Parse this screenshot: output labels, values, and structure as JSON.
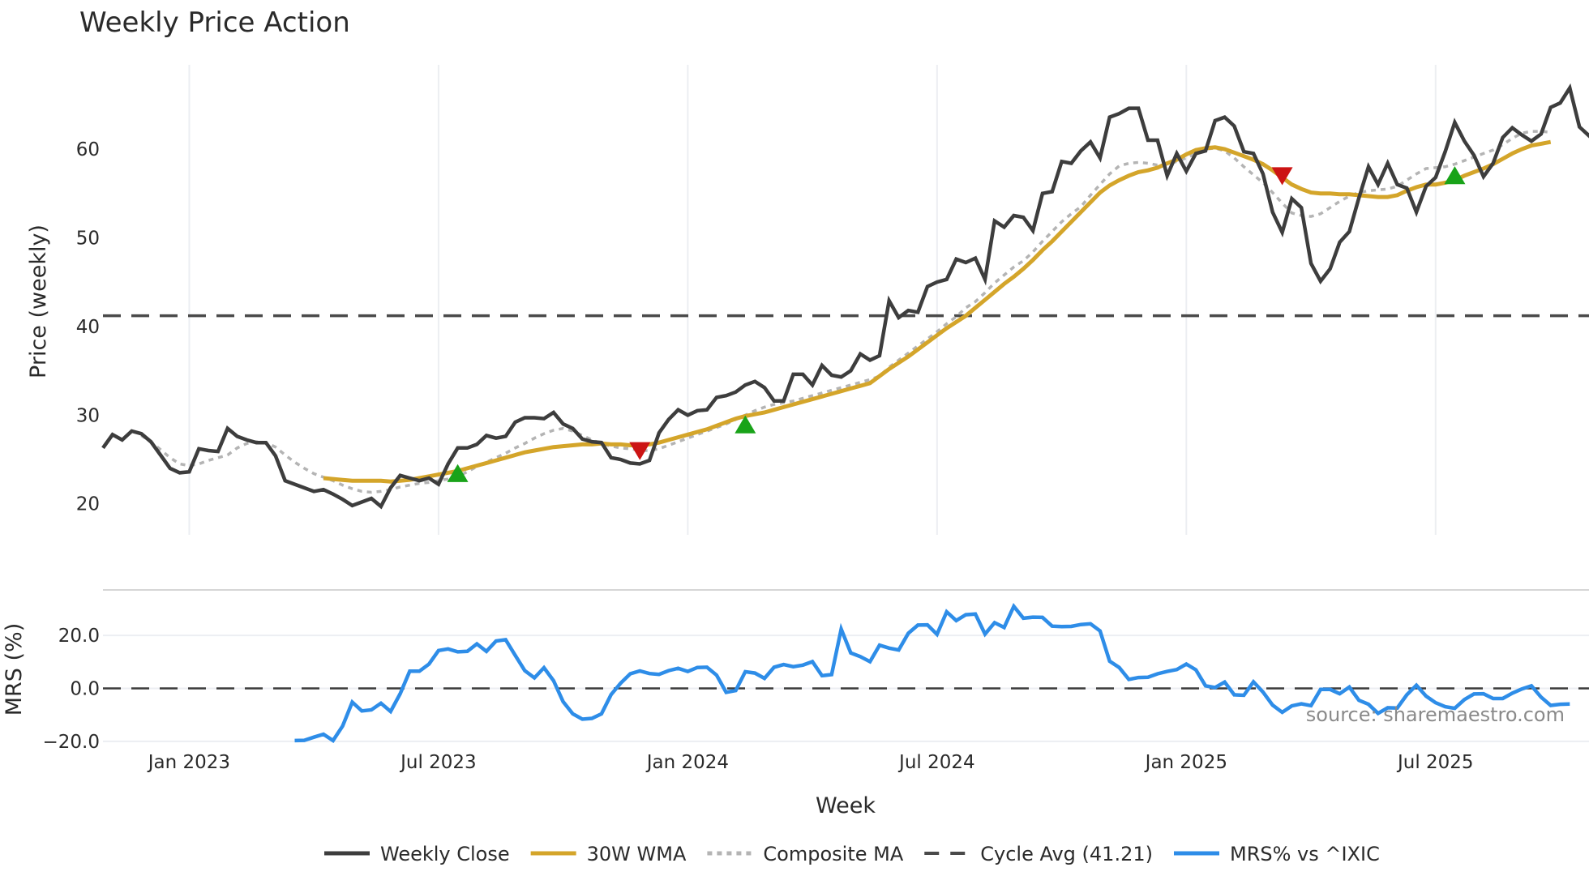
{
  "header": {
    "title": "Weekly Price Action"
  },
  "source_note": "source: sharemaestro.com",
  "legend": [
    {
      "label": "Weekly Close",
      "color": "#3d3d3d",
      "style": "solid"
    },
    {
      "label": "30W WMA",
      "color": "#d4a52a",
      "style": "solid"
    },
    {
      "label": "Composite MA",
      "color": "#b4b4b4",
      "style": "dotted"
    },
    {
      "label": "Cycle Avg (41.21)",
      "color": "#4a4a4a",
      "style": "dashed"
    },
    {
      "label": "MRS% vs ^IXIC",
      "color": "#2e8de8",
      "style": "solid"
    }
  ],
  "chart_data": [
    {
      "type": "line",
      "title": "Weekly Price Action",
      "xlabel": "Week",
      "ylabel": "Price (weekly)",
      "yticks": [
        20,
        30,
        40,
        50,
        60
      ],
      "ylim": [
        16.5,
        69.5
      ],
      "xticks": [
        "Jan 2023",
        "Jul 2023",
        "Jan 2024",
        "Jul 2024",
        "Jan 2025",
        "Jul 2025"
      ],
      "xtick_week_index": [
        9,
        35,
        61,
        87,
        113,
        139
      ],
      "grid": "vertical",
      "cycle_avg": 41.21,
      "series": [
        {
          "name": "Weekly Close",
          "start_index": 0,
          "values": [
            26.3,
            27.8,
            27.2,
            28.2,
            27.9,
            27.0,
            25.5,
            24.0,
            23.5,
            23.6,
            26.2,
            26.0,
            25.9,
            28.5,
            27.6,
            27.2,
            26.9,
            26.9,
            25.4,
            22.6,
            22.2,
            21.8,
            21.4,
            21.6,
            21.1,
            20.5,
            19.8,
            20.2,
            20.6,
            19.7,
            21.8,
            23.2,
            22.9,
            22.6,
            22.9,
            22.2,
            24.5,
            26.3,
            26.3,
            26.7,
            27.7,
            27.4,
            27.6,
            29.2,
            29.7,
            29.7,
            29.6,
            30.3,
            29.0,
            28.5,
            27.3,
            27.0,
            26.9,
            25.2,
            25.0,
            24.6,
            24.5,
            24.9,
            28.0,
            29.5,
            30.6,
            30.0,
            30.5,
            30.6,
            32.0,
            32.2,
            32.6,
            33.4,
            33.8,
            33.1,
            31.6,
            31.6,
            34.6,
            34.6,
            33.4,
            35.6,
            34.5,
            34.3,
            35.0,
            36.9,
            36.2,
            36.7,
            42.9,
            41.0,
            41.8,
            41.6,
            44.5,
            45.0,
            45.3,
            47.6,
            47.2,
            47.7,
            45.3,
            51.9,
            51.2,
            52.5,
            52.3,
            50.8,
            55.0,
            55.2,
            58.6,
            58.4,
            59.8,
            60.8,
            59.0,
            63.6,
            64.0,
            64.6,
            64.6,
            61.0,
            61.0,
            57.0,
            59.5,
            57.5,
            59.5,
            59.8,
            63.2,
            63.6,
            62.6,
            59.7,
            59.5,
            57.2,
            52.9,
            50.6,
            54.4,
            53.4,
            47.1,
            45.1,
            46.5,
            49.5,
            50.7,
            54.5,
            58.0,
            56.0,
            58.4,
            56.0,
            55.6,
            52.9,
            55.8,
            56.8,
            59.7,
            63.0,
            60.9,
            59.3,
            56.9,
            58.4,
            61.3,
            62.4,
            61.6,
            60.9,
            61.7,
            64.7,
            65.2,
            66.9,
            62.5,
            61.5,
            63.0
          ]
        },
        {
          "name": "30W WMA",
          "start_index": 23,
          "values": [
            22.9,
            22.8,
            22.7,
            22.6,
            22.6,
            22.6,
            22.6,
            22.5,
            22.6,
            22.7,
            22.9,
            23.1,
            23.3,
            23.5,
            23.7,
            24.0,
            24.3,
            24.6,
            24.9,
            25.2,
            25.5,
            25.8,
            26.0,
            26.2,
            26.4,
            26.5,
            26.6,
            26.7,
            26.7,
            26.8,
            26.7,
            26.7,
            26.6,
            26.6,
            26.7,
            26.9,
            27.2,
            27.5,
            27.8,
            28.1,
            28.4,
            28.8,
            29.2,
            29.6,
            29.9,
            30.1,
            30.3,
            30.6,
            30.9,
            31.2,
            31.5,
            31.8,
            32.1,
            32.4,
            32.7,
            33.0,
            33.3,
            33.6,
            34.4,
            35.2,
            35.9,
            36.6,
            37.4,
            38.2,
            39.0,
            39.8,
            40.5,
            41.2,
            42.1,
            43.0,
            43.9,
            44.8,
            45.6,
            46.5,
            47.5,
            48.6,
            49.6,
            50.7,
            51.8,
            52.9,
            54.0,
            55.1,
            55.9,
            56.5,
            57.0,
            57.4,
            57.6,
            57.9,
            58.4,
            58.8,
            59.4,
            59.9,
            60.1,
            60.2,
            60.0,
            59.6,
            59.2,
            58.8,
            58.3,
            57.6,
            56.8,
            56.0,
            55.5,
            55.1,
            55.0,
            55.0,
            54.9,
            54.9,
            54.8,
            54.7,
            54.6,
            54.6,
            54.8,
            55.3,
            55.7,
            56.0,
            56.0,
            56.2,
            56.5,
            57.0,
            57.4,
            57.8,
            58.3,
            58.9,
            59.5,
            60.0,
            60.4,
            60.6,
            60.8
          ]
        },
        {
          "name": "Composite MA",
          "start_index": 4,
          "values": [
            27.7,
            27.0,
            26.1,
            25.2,
            24.5,
            24.3,
            24.5,
            24.9,
            25.2,
            25.5,
            26.3,
            26.8,
            27.0,
            26.9,
            26.4,
            25.5,
            24.7,
            24.0,
            23.4,
            23.0,
            22.6,
            22.1,
            21.7,
            21.4,
            21.3,
            21.4,
            21.6,
            21.9,
            22.1,
            22.3,
            22.4,
            22.6,
            22.8,
            23.1,
            23.6,
            24.2,
            24.7,
            25.2,
            25.7,
            26.3,
            26.8,
            27.4,
            27.9,
            28.3,
            28.5,
            28.2,
            27.7,
            27.2,
            26.8,
            26.5,
            26.3,
            26.2,
            26.0,
            26.0,
            26.2,
            26.6,
            27.0,
            27.4,
            27.8,
            28.2,
            28.6,
            29.0,
            29.5,
            30.0,
            30.5,
            30.9,
            31.2,
            31.4,
            31.6,
            31.9,
            32.2,
            32.5,
            32.8,
            33.1,
            33.4,
            33.7,
            34.0,
            34.4,
            35.4,
            36.2,
            37.0,
            37.8,
            38.6,
            39.4,
            40.3,
            41.1,
            42.1,
            42.8,
            43.8,
            44.9,
            45.8,
            46.7,
            47.4,
            48.4,
            49.6,
            50.7,
            51.8,
            52.7,
            53.5,
            54.8,
            56.0,
            57.2,
            58.1,
            58.4,
            58.5,
            58.4,
            58.2,
            58.3,
            58.6,
            59.0,
            59.5,
            60.0,
            60.1,
            59.8,
            59.0,
            58.0,
            57.1,
            56.2,
            55.1,
            53.9,
            52.8,
            52.5,
            52.4,
            52.7,
            53.4,
            54.1,
            54.7,
            55.1,
            55.3,
            55.4,
            55.5,
            55.8,
            56.5,
            57.2,
            57.8,
            57.9,
            58.0,
            58.3,
            58.7,
            59.1,
            59.5,
            59.9,
            60.5,
            61.2,
            61.8,
            62.0,
            62.0,
            61.9
          ]
        }
      ],
      "markers": [
        {
          "type": "buy",
          "shape": "triangle-up",
          "color": "#19a319",
          "index": 37,
          "value": 23.4
        },
        {
          "type": "sell",
          "shape": "triangle-down",
          "color": "#cc1414",
          "index": 56,
          "value": 26.0
        },
        {
          "type": "buy",
          "shape": "triangle-up",
          "color": "#19a319",
          "index": 67,
          "value": 28.9
        },
        {
          "type": "sell",
          "shape": "triangle-down",
          "color": "#cc1414",
          "index": 123,
          "value": 57.0
        },
        {
          "type": "buy",
          "shape": "triangle-up",
          "color": "#19a319",
          "index": 141,
          "value": 57.0
        }
      ]
    },
    {
      "type": "line",
      "ylabel": "MRS (%)",
      "yticks": [
        -20.0,
        0.0,
        20.0
      ],
      "ytick_labels": [
        "−20.0",
        "0.0",
        "20.0"
      ],
      "ylim": [
        -24,
        33.5
      ],
      "zero_line": 0.0,
      "series": [
        {
          "name": "MRS% vs ^IXIC",
          "start_index": 20,
          "values": [
            -19.7,
            -19.6,
            -18.4,
            -17.3,
            -19.7,
            -14.2,
            -5.2,
            -8.5,
            -8.1,
            -5.6,
            -8.7,
            -2.0,
            6.5,
            6.5,
            9.2,
            14.3,
            14.9,
            13.8,
            14.0,
            16.8,
            14.0,
            17.9,
            18.4,
            12.5,
            6.7,
            4.0,
            7.8,
            2.9,
            -5.0,
            -9.6,
            -11.6,
            -11.3,
            -9.6,
            -2.3,
            2.0,
            5.5,
            6.6,
            5.6,
            5.3,
            6.7,
            7.6,
            6.4,
            7.9,
            8.0,
            5.0,
            -1.5,
            -0.8,
            6.3,
            5.8,
            3.8,
            8.0,
            9.0,
            8.2,
            8.8,
            10.1,
            4.8,
            5.2,
            22.4,
            13.4,
            12.0,
            10.1,
            16.3,
            15.2,
            14.5,
            20.8,
            23.9,
            24.0,
            20.4,
            28.9,
            25.6,
            27.8,
            28.1,
            20.5,
            24.8,
            23.0,
            31.0,
            26.5,
            26.9,
            26.8,
            23.5,
            23.3,
            23.4,
            24.1,
            24.4,
            21.7,
            10.3,
            7.9,
            3.4,
            4.1,
            4.2,
            5.5,
            6.4,
            7.1,
            9.2,
            7.0,
            1.0,
            0.3,
            2.4,
            -2.4,
            -2.6,
            2.5,
            -1.4,
            -6.3,
            -9.0,
            -6.6,
            -5.8,
            -6.5,
            -0.4,
            -0.4,
            -2.0,
            0.5,
            -4.5,
            -6.0,
            -9.4,
            -7.3,
            -7.4,
            -2.4,
            1.2,
            -2.9,
            -5.4,
            -6.9,
            -7.5,
            -4.2,
            -2.1,
            -2.0,
            -3.8,
            -3.8,
            -1.8,
            -0.2,
            1.0,
            -3.3,
            -6.4,
            -6.0,
            -5.9
          ]
        }
      ]
    }
  ],
  "axes": {
    "week_count": 156,
    "x_label": "Week",
    "price_ylabel": "Price (weekly)",
    "mrs_ylabel": "MRS (%)"
  }
}
